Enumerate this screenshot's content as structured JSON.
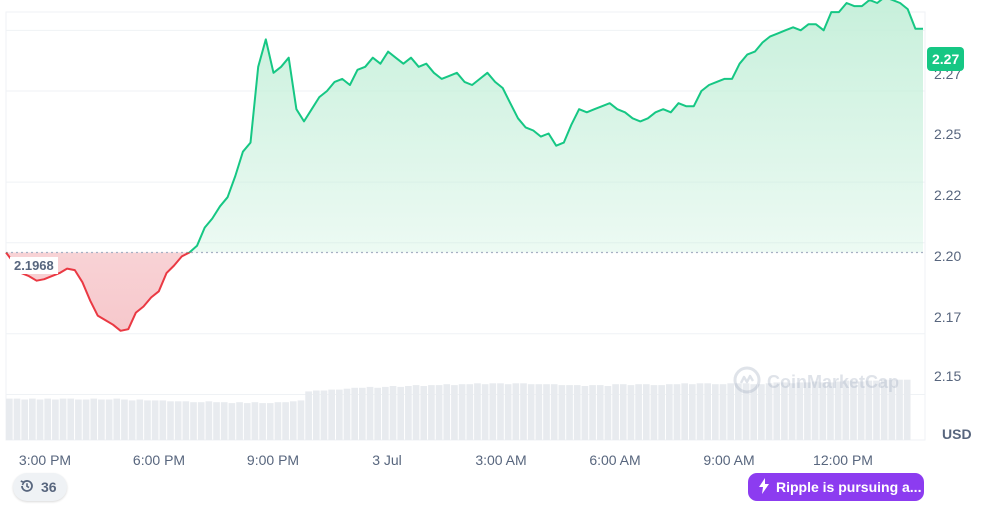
{
  "chart_data": {
    "type": "area",
    "currency": "USD",
    "y_ticks": [
      "2.27",
      "2.25",
      "2.22",
      "2.20",
      "2.17",
      "2.15"
    ],
    "x_ticks": [
      "3:00 PM",
      "6:00 PM",
      "9:00 PM",
      "3 Jul",
      "3:00 AM",
      "6:00 AM",
      "9:00 AM",
      "12:00 PM"
    ],
    "reference_price": 2.1968,
    "reference_label": "2.1968",
    "last_price_label": "2.27",
    "last_price": 2.2705,
    "ylim": [
      2.135,
      2.28
    ],
    "x_unit": "hours since 2:00 PM (2 Jul)",
    "xlim": [
      1.0,
      25.0
    ],
    "price_series": {
      "x": [
        1.0,
        1.2,
        1.4,
        1.6,
        1.8,
        2.0,
        2.2,
        2.4,
        2.6,
        2.8,
        3.0,
        3.2,
        3.4,
        3.6,
        3.8,
        4.0,
        4.2,
        4.4,
        4.6,
        4.8,
        5.0,
        5.2,
        5.4,
        5.6,
        5.8,
        6.0,
        6.2,
        6.4,
        6.6,
        6.8,
        7.0,
        7.2,
        7.4,
        7.6,
        7.8,
        8.0,
        8.2,
        8.4,
        8.6,
        8.8,
        9.0,
        9.2,
        9.4,
        9.6,
        9.8,
        10.0,
        10.2,
        10.4,
        10.6,
        10.8,
        11.0,
        11.2,
        11.4,
        11.6,
        11.8,
        12.0,
        12.2,
        12.4,
        12.6,
        12.8,
        13.0,
        13.2,
        13.4,
        13.6,
        13.8,
        14.0,
        14.2,
        14.4,
        14.6,
        14.8,
        15.0,
        15.2,
        15.4,
        15.6,
        15.8,
        16.0,
        16.2,
        16.4,
        16.6,
        16.8,
        17.0,
        17.2,
        17.4,
        17.6,
        17.8,
        18.0,
        18.2,
        18.4,
        18.6,
        18.8,
        19.0,
        19.2,
        19.4,
        19.6,
        19.8,
        20.0,
        20.2,
        20.4,
        20.6,
        20.8,
        21.0,
        21.2,
        21.4,
        21.6,
        21.8,
        22.0,
        22.2,
        22.4,
        22.6,
        22.8,
        23.0,
        23.2,
        23.4,
        23.6,
        23.8,
        24.0,
        24.2,
        24.4,
        24.6,
        24.8,
        25.0
      ],
      "y": [
        2.1968,
        2.1935,
        2.19,
        2.189,
        2.1875,
        2.188,
        2.189,
        2.19,
        2.1915,
        2.191,
        2.187,
        2.181,
        2.176,
        2.1745,
        2.173,
        2.171,
        2.1715,
        2.177,
        2.179,
        2.182,
        2.184,
        2.19,
        2.1925,
        2.1955,
        2.1968,
        2.199,
        2.205,
        2.208,
        2.212,
        2.215,
        2.222,
        2.23,
        2.233,
        2.258,
        2.267,
        2.256,
        2.258,
        2.261,
        2.244,
        2.24,
        2.244,
        2.248,
        2.25,
        2.253,
        2.254,
        2.252,
        2.257,
        2.258,
        2.261,
        2.259,
        2.263,
        2.261,
        2.259,
        2.261,
        2.258,
        2.259,
        2.256,
        2.254,
        2.255,
        2.256,
        2.253,
        2.252,
        2.254,
        2.256,
        2.253,
        2.251,
        2.246,
        2.241,
        2.238,
        2.237,
        2.235,
        2.236,
        2.232,
        2.233,
        2.239,
        2.244,
        2.243,
        2.244,
        2.245,
        2.246,
        2.244,
        2.243,
        2.241,
        2.24,
        2.241,
        2.243,
        2.244,
        2.243,
        2.246,
        2.245,
        2.245,
        2.25,
        2.252,
        2.253,
        2.254,
        2.254,
        2.259,
        2.262,
        2.263,
        2.266,
        2.268,
        2.269,
        2.27,
        2.271,
        2.27,
        2.272,
        2.272,
        2.27,
        2.276,
        2.276,
        2.279,
        2.278,
        2.278,
        2.28,
        2.279,
        2.281,
        2.28,
        2.279,
        2.277,
        2.2705,
        2.2705
      ]
    },
    "volume_bars": {
      "x_start": 1.0,
      "x_end": 24.7,
      "count": 118,
      "relative_heights": [
        0.46,
        0.46,
        0.45,
        0.46,
        0.45,
        0.46,
        0.45,
        0.46,
        0.46,
        0.45,
        0.45,
        0.46,
        0.45,
        0.45,
        0.46,
        0.45,
        0.44,
        0.45,
        0.44,
        0.44,
        0.44,
        0.43,
        0.43,
        0.43,
        0.42,
        0.42,
        0.43,
        0.42,
        0.42,
        0.41,
        0.42,
        0.41,
        0.42,
        0.41,
        0.41,
        0.42,
        0.42,
        0.43,
        0.44,
        0.54,
        0.55,
        0.55,
        0.56,
        0.56,
        0.57,
        0.58,
        0.58,
        0.59,
        0.58,
        0.59,
        0.6,
        0.59,
        0.6,
        0.61,
        0.6,
        0.61,
        0.61,
        0.62,
        0.61,
        0.62,
        0.62,
        0.63,
        0.62,
        0.63,
        0.63,
        0.62,
        0.63,
        0.63,
        0.62,
        0.62,
        0.62,
        0.62,
        0.61,
        0.61,
        0.61,
        0.6,
        0.61,
        0.61,
        0.6,
        0.62,
        0.62,
        0.61,
        0.62,
        0.62,
        0.61,
        0.61,
        0.62,
        0.62,
        0.63,
        0.62,
        0.63,
        0.63,
        0.62,
        0.62,
        0.63,
        0.63,
        0.63,
        0.62,
        0.62,
        0.63,
        0.64,
        0.64,
        0.63,
        0.64,
        0.64,
        0.65,
        0.64,
        0.64,
        0.65,
        0.66,
        0.66,
        0.65,
        0.66,
        0.66,
        0.67,
        0.67,
        0.67,
        0.67
      ]
    },
    "colors": {
      "up": "#16c784",
      "down": "#ea3943",
      "up_fill_top": "#c4efd9",
      "down_fill_top": "#f6c5c9",
      "grid": "#eff2f5",
      "volume": "#e8ebef",
      "reference_line": "#a6b0c3"
    },
    "grid": true
  },
  "watermark": {
    "text": "CoinMarketCap"
  },
  "history_badge": {
    "count": "36"
  },
  "news_badge": {
    "text": "Ripple is pursuing a..."
  },
  "icons": {
    "history": "clock-rewind-icon",
    "news": "lightning-bolt-icon",
    "watermark": "coinmarketcap-logo-icon"
  }
}
